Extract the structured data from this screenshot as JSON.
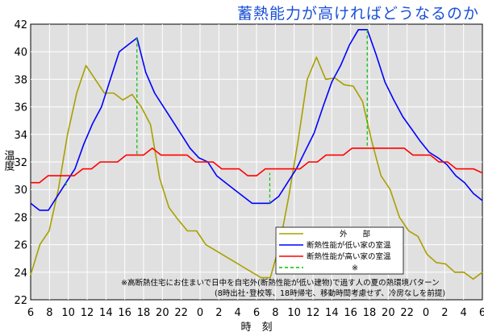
{
  "title": "蓄熱能力が高ければどうなるのか",
  "chart_data": {
    "type": "line",
    "xlabel": "時　刻",
    "ylabel": "温度",
    "x_tick_labels": [
      "6",
      "8",
      "10",
      "12",
      "14",
      "16",
      "18",
      "20",
      "22",
      "0",
      "2",
      "4",
      "6",
      "8",
      "10",
      "12",
      "14",
      "16",
      "18",
      "20",
      "22",
      "0",
      "2",
      "4",
      "6"
    ],
    "ylim": [
      22,
      42
    ],
    "y_ticks": [
      22,
      24,
      26,
      28,
      30,
      32,
      34,
      36,
      38,
      40,
      42
    ],
    "grid": true,
    "legend_position": "bottom-right",
    "series": [
      {
        "name": "外　　部",
        "color": "#a8a000",
        "values": [
          23.8,
          26.0,
          27.0,
          30.0,
          34.0,
          37.0,
          39.0,
          38.0,
          37.0,
          37.0,
          36.5,
          36.9,
          36.0,
          34.7,
          30.8,
          28.7,
          27.8,
          27.0,
          27.0,
          26.0,
          25.6,
          25.2,
          24.8,
          24.4,
          24.0,
          23.6,
          23.6,
          26.0,
          29.5,
          33.5,
          38.0,
          39.6,
          38.0,
          38.1,
          37.6,
          37.5,
          36.4,
          33.5,
          31.0,
          30.0,
          28.0,
          27.0,
          26.6,
          25.3,
          24.7,
          24.6,
          24.0,
          24.0,
          23.5,
          24.0
        ]
      },
      {
        "name": "断熱性能が低い家の室温",
        "color": "#0000ff",
        "values": [
          29.0,
          28.5,
          28.5,
          29.5,
          30.5,
          31.5,
          33.3,
          34.8,
          36.0,
          38.0,
          40.0,
          40.5,
          41.0,
          38.5,
          37.0,
          36.0,
          35.0,
          34.0,
          33.0,
          32.3,
          32.0,
          31.0,
          30.5,
          30.0,
          29.5,
          29.0,
          29.0,
          29.0,
          29.5,
          30.5,
          31.5,
          32.8,
          34.1,
          36.0,
          37.8,
          39.0,
          40.5,
          41.6,
          41.6,
          39.8,
          37.8,
          36.5,
          35.3,
          34.4,
          33.5,
          32.7,
          32.3,
          31.8,
          31.0,
          30.5,
          29.7,
          29.2
        ]
      },
      {
        "name": "断熱性能が高い家の室温",
        "color": "#ff0000",
        "values": [
          30.5,
          30.5,
          31.0,
          31.0,
          31.0,
          31.0,
          31.5,
          31.5,
          32.0,
          32.0,
          32.0,
          32.5,
          32.5,
          32.5,
          33.0,
          32.5,
          32.5,
          32.5,
          32.5,
          32.0,
          32.0,
          32.0,
          31.5,
          31.5,
          31.5,
          31.0,
          31.0,
          31.5,
          31.5,
          31.5,
          31.5,
          31.5,
          32.0,
          32.0,
          32.5,
          32.5,
          32.5,
          33.0,
          33.0,
          33.0,
          33.0,
          33.0,
          33.0,
          33.0,
          32.5,
          32.5,
          32.5,
          32.0,
          32.0,
          31.5,
          31.5,
          31.5,
          31.2
        ]
      },
      {
        "name": "※",
        "color": "#00c000",
        "dashed": true
      }
    ],
    "annotation_lines": [
      "※高断熱住宅にお住まいで日中を自宅外(断熱性能が低い建物)で過す人の夏の熱環境パターン",
      "(8時出社･登校等、18時帰宅、移動時間考慮せず、冷房なしを前提)"
    ]
  }
}
